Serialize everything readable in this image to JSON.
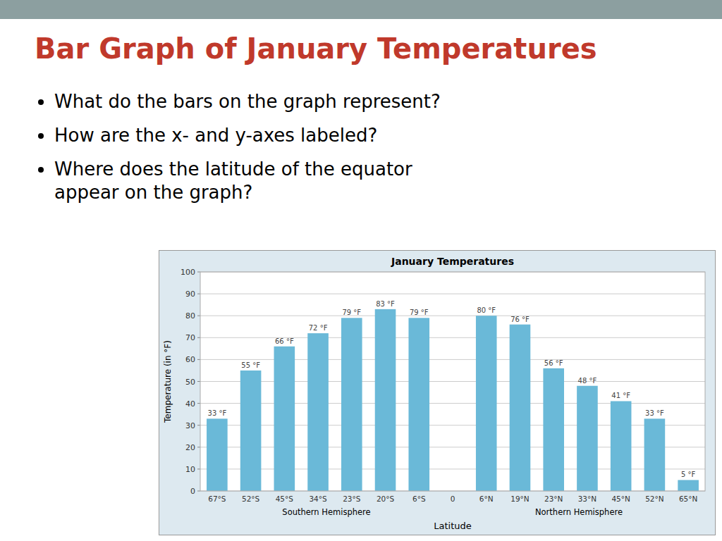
{
  "slide_title": "Bar Graph of January Temperatures",
  "bullets": [
    "What do the bars on the graph represent?",
    "How are the x- and y-axes labeled?",
    "Where does the latitude of the equator\nappear on the graph?"
  ],
  "chart_data": {
    "type": "bar",
    "title": "January Temperatures",
    "xlabel": "Latitude",
    "ylabel": "Temperature (in °F)",
    "categories": [
      "67°S",
      "52°S",
      "45°S",
      "34°S",
      "23°S",
      "20°S",
      "6°S",
      "0",
      "6°N",
      "19°N",
      "23°N",
      "33°N",
      "45°N",
      "52°N",
      "65°N"
    ],
    "values": [
      33,
      55,
      66,
      72,
      79,
      83,
      79,
      0,
      80,
      76,
      56,
      48,
      41,
      33,
      5
    ],
    "value_labels": [
      "33 °F",
      "55 °F",
      "66 °F",
      "72 °F",
      "79 °F",
      "83 °F",
      "79 °F",
      null,
      "80 °F",
      "76 °F",
      "56 °F",
      "48 °F",
      "41 °F",
      "33 °F",
      "5 °F"
    ],
    "data_labels": true,
    "color": "#6ab9d8",
    "ylim": [
      0,
      100
    ],
    "yticks": [
      0,
      10,
      20,
      30,
      40,
      50,
      60,
      70,
      80,
      90,
      100
    ],
    "grid": true,
    "annotations": [
      "Southern Hemisphere",
      "Northern Hemisphere"
    ]
  }
}
